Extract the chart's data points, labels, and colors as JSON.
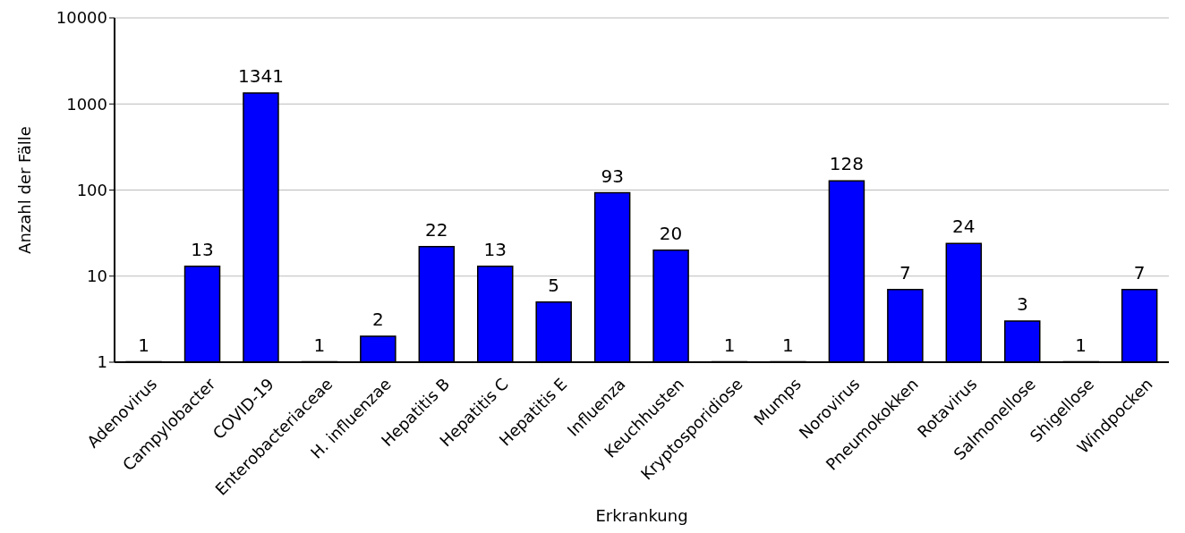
{
  "chart_data": {
    "type": "bar",
    "xlabel": "Erkrankung",
    "ylabel": "Anzahl der Fälle",
    "categories": [
      "Adenovirus",
      "Campylobacter",
      "COVID-19",
      "Enterobacteriaceae",
      "H. influenzae",
      "Hepatitis B",
      "Hepatitis C",
      "Hepatitis E",
      "Influenza",
      "Keuchhusten",
      "Kryptosporidiose",
      "Mumps",
      "Norovirus",
      "Pneumokokken",
      "Rotavirus",
      "Salmonellose",
      "Shigellose",
      "Windpocken"
    ],
    "values": [
      1,
      13,
      1341,
      1,
      2,
      22,
      13,
      5,
      93,
      20,
      1,
      1,
      128,
      7,
      24,
      3,
      1,
      7
    ],
    "color": "#0000ff",
    "log": true,
    "ylim": [
      1,
      10000
    ],
    "yticks": [
      1,
      10,
      100,
      1000,
      10000
    ],
    "grid": "y",
    "data_labels": true
  }
}
